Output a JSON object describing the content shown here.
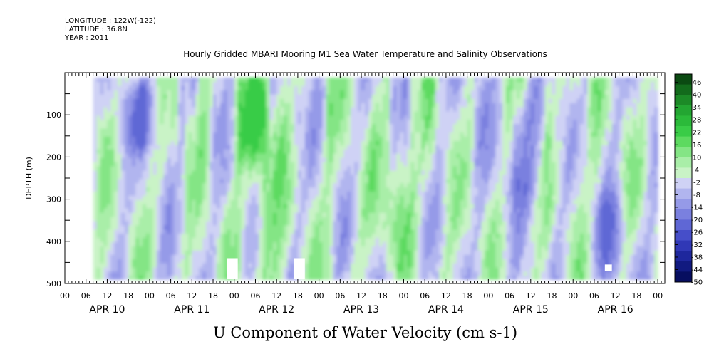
{
  "header": {
    "longitude": "LONGITUDE : 122W(-122)",
    "latitude": "LATITUDE : 36.8N",
    "year": "YEAR : 2011"
  },
  "chart_data": {
    "type": "heatmap",
    "title": "Hourly Gridded MBARI Mooring M1 Sea Water Temperature and Salinity Observations",
    "xlabel": "U Component of Water Velocity (cm s-1)",
    "ylabel": "DEPTH (m)",
    "x_range_hours": [
      0,
      170
    ],
    "data_x_range_hours": [
      8,
      168
    ],
    "y_range_m": [
      0,
      500
    ],
    "data_y_range_m": [
      12,
      490
    ],
    "y_ticks": [
      100,
      200,
      300,
      400,
      500
    ],
    "hour_tick_labels": [
      "00",
      "06",
      "12",
      "18",
      "00",
      "06",
      "12",
      "18",
      "00",
      "06",
      "12",
      "18",
      "00",
      "06",
      "12",
      "18",
      "00",
      "06",
      "12",
      "18",
      "00",
      "06",
      "12",
      "18",
      "00",
      "06",
      "12",
      "18",
      "00"
    ],
    "day_labels": [
      "APR 10",
      "APR 11",
      "APR 12",
      "APR 13",
      "APR 14",
      "APR 15",
      "APR 16"
    ],
    "colorbar": {
      "range": [
        -50,
        50
      ],
      "tick_labels": [
        "46",
        "40",
        "34",
        "28",
        "22",
        "16",
        "10",
        "4",
        "-2",
        "-8",
        "-14",
        "-20",
        "-26",
        "-32",
        "-38",
        "-44",
        "-50"
      ],
      "colors": [
        "#0b4a12",
        "#136b1c",
        "#1c8a27",
        "#23a632",
        "#2bba3a",
        "#39cc47",
        "#5dda60",
        "#84e585",
        "#a9eea8",
        "#c9f3c6",
        "#cfd2f5",
        "#b1b5ef",
        "#959ae8",
        "#7a80df",
        "#5f67d5",
        "#464ec9",
        "#3038b6",
        "#1e279d",
        "#111a80",
        "#070e60"
      ]
    },
    "features": [
      {
        "name": "strong green column near APR 13",
        "hour_range": [
          55,
          58
        ],
        "depth_range": [
          20,
          480
        ],
        "u_cm_s": 18
      },
      {
        "name": "green band APR 12 morning",
        "hour_range": [
          48,
          54
        ],
        "depth_range": [
          20,
          200
        ],
        "u_cm_s": 14
      },
      {
        "name": "blue patch APR 10 upper",
        "hour_range": [
          18,
          24
        ],
        "depth_range": [
          40,
          160
        ],
        "u_cm_s": -16
      },
      {
        "name": "green band APR 14",
        "hour_range": [
          90,
          96
        ],
        "depth_range": [
          100,
          420
        ],
        "u_cm_s": 14
      },
      {
        "name": "blue band APR 15",
        "hour_range": [
          126,
          134
        ],
        "depth_range": [
          60,
          300
        ],
        "u_cm_s": -14
      },
      {
        "name": "blue lower APR 16",
        "hour_range": [
          150,
          158
        ],
        "depth_range": [
          300,
          480
        ],
        "u_cm_s": -12
      }
    ],
    "missing_data": [
      {
        "hour_range": [
          46,
          49
        ],
        "depth_range": [
          440,
          490
        ]
      },
      {
        "hour_range": [
          65,
          68
        ],
        "depth_range": [
          440,
          490
        ]
      },
      {
        "hour_range": [
          153,
          155
        ],
        "depth_range": [
          455,
          470
        ]
      }
    ],
    "grid": false,
    "legend_placement": "right"
  }
}
